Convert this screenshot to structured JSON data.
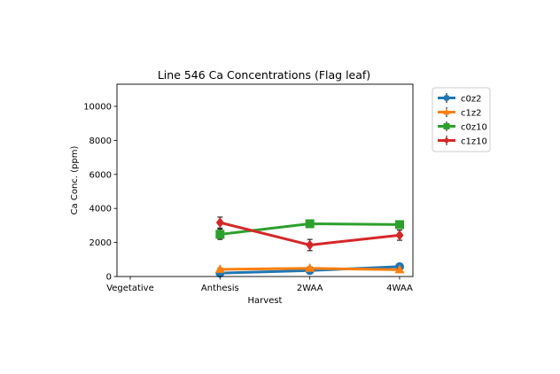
{
  "chart_data": {
    "type": "line",
    "title": "Line 546 Ca Concentrations (Flag leaf)",
    "xlabel": "Harvest",
    "ylabel": "Ca Conc. (ppm)",
    "categories": [
      "Vegetative",
      "Anthesis",
      "2WAA",
      "4WAA"
    ],
    "ylim": [
      0,
      11300
    ],
    "yticks": [
      0,
      2000,
      4000,
      6000,
      8000,
      10000
    ],
    "grid": false,
    "legend_position": "outside-right",
    "series": [
      {
        "name": "c0z2",
        "color": "#1f77b4",
        "marker": "circle",
        "values": [
          null,
          200,
          350,
          580
        ],
        "errors": [
          null,
          60,
          80,
          60
        ]
      },
      {
        "name": "c1z2",
        "color": "#ff7f0e",
        "marker": "triangle",
        "values": [
          null,
          420,
          480,
          400
        ],
        "errors": [
          null,
          60,
          80,
          60
        ]
      },
      {
        "name": "c0z10",
        "color": "#2ca02c",
        "marker": "square",
        "values": [
          null,
          2480,
          3100,
          3050
        ],
        "errors": [
          null,
          300,
          120,
          100
        ]
      },
      {
        "name": "c1z10",
        "color": "#d62728",
        "marker": "diamond",
        "values": [
          null,
          3170,
          1850,
          2430
        ],
        "errors": [
          null,
          320,
          330,
          300
        ]
      }
    ]
  }
}
